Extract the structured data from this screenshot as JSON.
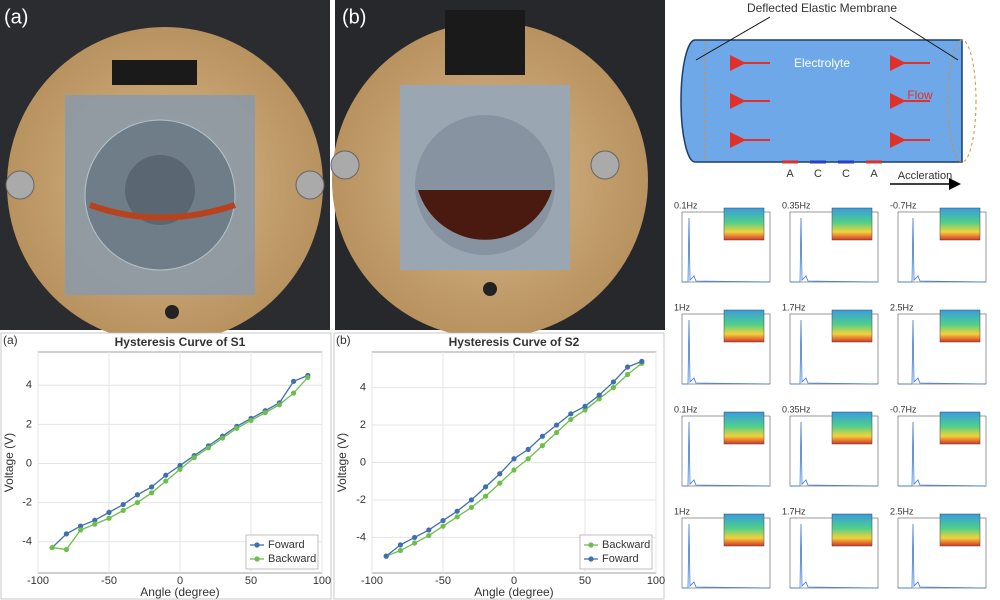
{
  "photos": {
    "labels": [
      "(a)",
      "(b)"
    ]
  },
  "diagram": {
    "membrane_label": "Deflected Elastic Membrane",
    "fluid_label": "Electrolyte",
    "flow_label": "Flow",
    "electrodes": [
      "A",
      "C",
      "C",
      "A"
    ],
    "acceleration_label": "Accleration"
  },
  "spectra": {
    "labels": [
      "0.1Hz",
      "0.35Hz",
      "-0.7Hz",
      "1Hz",
      "1.7Hz",
      "2.5Hz",
      "0.1Hz",
      "0.35Hz",
      "-0.7Hz",
      "1Hz",
      "1.7Hz",
      "2.5Hz"
    ]
  },
  "chart_data": [
    {
      "type": "line",
      "panel_label": "(a)",
      "title": "Hysteresis Curve of S1",
      "x_label": "Angle (degree)",
      "y_label": "Voltage (V)",
      "x": [
        -90,
        -80,
        -70,
        -60,
        -50,
        -40,
        -30,
        -20,
        -10,
        0,
        10,
        20,
        30,
        40,
        50,
        60,
        70,
        80,
        90
      ],
      "series": [
        {
          "name": "Foward",
          "color": "#3f6fae",
          "values": [
            -4.3,
            -3.6,
            -3.2,
            -2.9,
            -2.5,
            -2.1,
            -1.6,
            -1.2,
            -0.6,
            -0.1,
            0.4,
            0.9,
            1.4,
            1.9,
            2.3,
            2.7,
            3.1,
            4.2,
            4.5
          ]
        },
        {
          "name": "Backward",
          "color": "#6cbf4a",
          "values": [
            -4.3,
            -4.4,
            -3.4,
            -3.1,
            -2.8,
            -2.4,
            -2.0,
            -1.5,
            -0.9,
            -0.3,
            0.3,
            0.8,
            1.3,
            1.8,
            2.2,
            2.6,
            3.0,
            3.6,
            4.4
          ]
        }
      ],
      "xlim": [
        -100,
        100
      ],
      "xticks": [
        -100,
        -50,
        0,
        50,
        100
      ],
      "ylim": [
        -5.6,
        5.7
      ],
      "yticks": [
        -4,
        -2,
        0,
        2,
        4
      ],
      "grid": true,
      "legend": "lower right"
    },
    {
      "type": "line",
      "panel_label": "(b)",
      "title": "Hysteresis Curve of S2",
      "x_label": "Angle (degree)",
      "y_label": "Voltage (V)",
      "x": [
        -90,
        -80,
        -70,
        -60,
        -50,
        -40,
        -30,
        -20,
        -10,
        0,
        10,
        20,
        30,
        40,
        50,
        60,
        70,
        80,
        90
      ],
      "series": [
        {
          "name": "Backward",
          "color": "#6cbf4a",
          "values": [
            -5.0,
            -4.7,
            -4.3,
            -3.9,
            -3.4,
            -2.9,
            -2.4,
            -1.8,
            -1.1,
            -0.4,
            0.2,
            0.9,
            1.6,
            2.3,
            2.8,
            3.4,
            4.0,
            4.7,
            5.3
          ]
        },
        {
          "name": "Foward",
          "color": "#3f6fae",
          "values": [
            -5.0,
            -4.4,
            -4.0,
            -3.6,
            -3.1,
            -2.6,
            -2.0,
            -1.3,
            -0.6,
            0.2,
            0.7,
            1.4,
            2.0,
            2.6,
            3.0,
            3.6,
            4.3,
            5.1,
            5.4
          ]
        }
      ],
      "xlim": [
        -100,
        100
      ],
      "xticks": [
        -100,
        -50,
        0,
        50,
        100
      ],
      "ylim": [
        -5.9,
        5.9
      ],
      "yticks": [
        -4,
        -2,
        0,
        2,
        4
      ],
      "grid": true,
      "legend": "lower right"
    }
  ]
}
